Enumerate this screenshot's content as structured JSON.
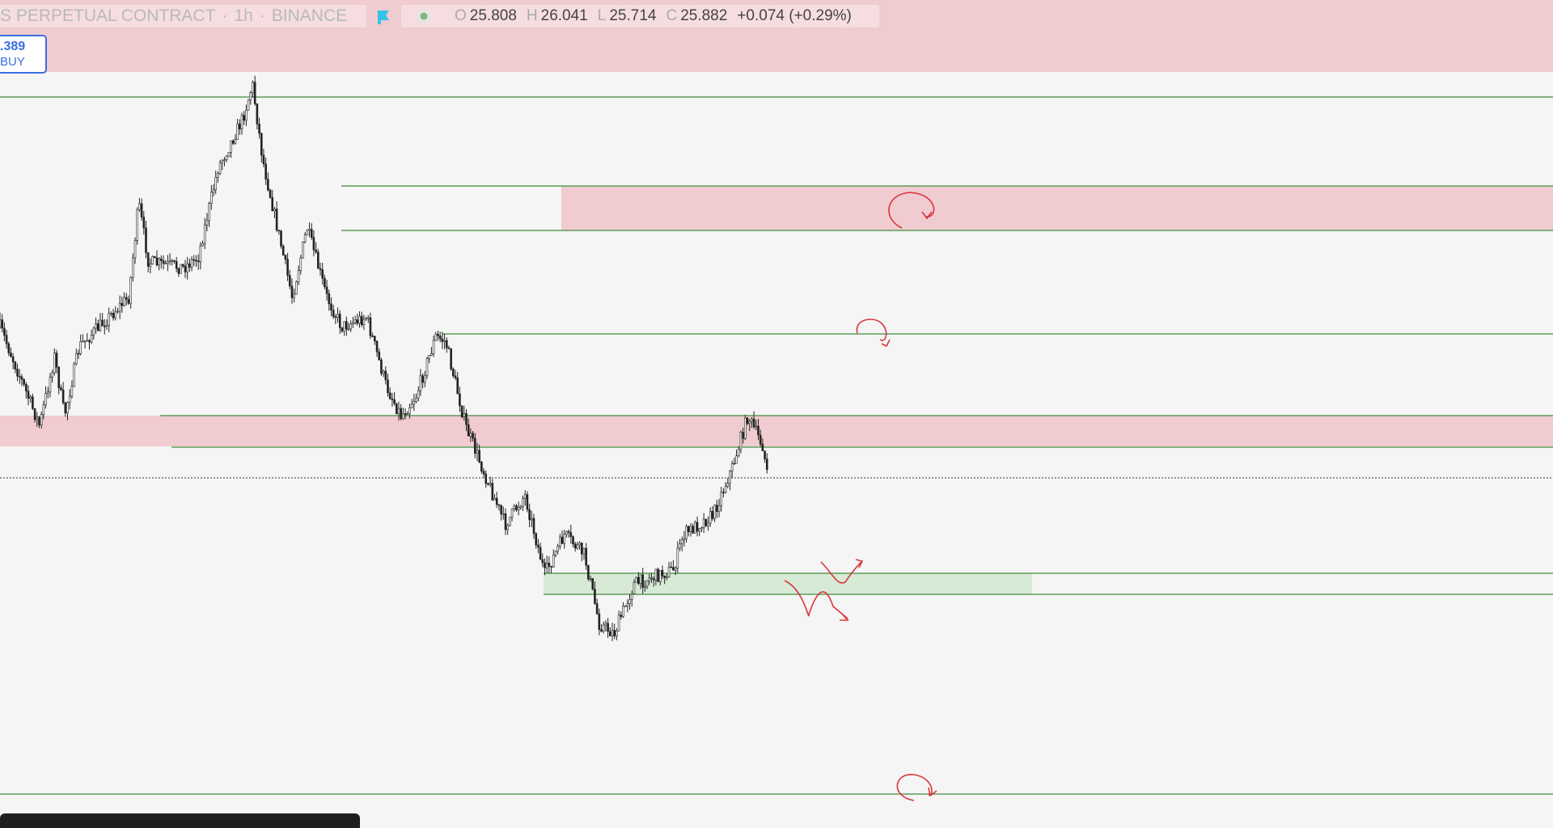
{
  "header": {
    "symbol": "S PERPETUAL CONTRACT",
    "separator": "·",
    "interval": "1h",
    "exchange": "BINANCE",
    "ohlc": [
      {
        "label": "O",
        "value": "25.808"
      },
      {
        "label": "H",
        "value": "26.041"
      },
      {
        "label": "L",
        "value": "25.714"
      },
      {
        "label": "C",
        "value": "25.882"
      }
    ],
    "change": "+0.074 (+0.29%)"
  },
  "order_button": {
    "price": ".389",
    "side": "BUY"
  }
}
